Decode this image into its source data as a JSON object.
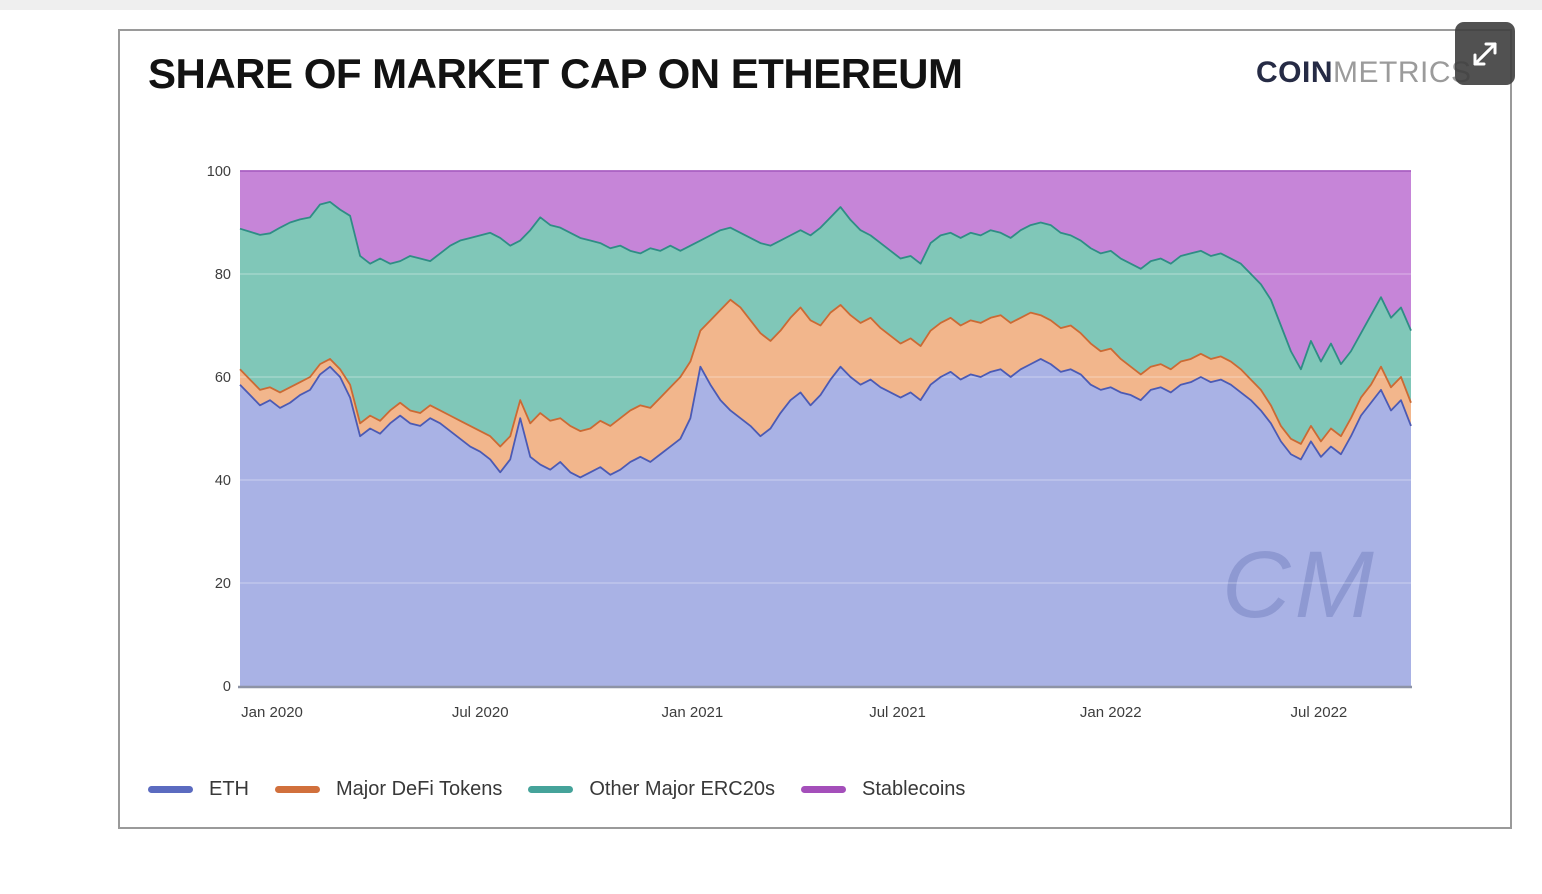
{
  "page": {
    "title": "SHARE OF MARKET CAP ON ETHEREUM"
  },
  "brand": {
    "bold": "COIN",
    "light": "METRICS"
  },
  "controls": {
    "expand_button": "expand-fullscreen"
  },
  "watermark": "CM",
  "chart_data": {
    "type": "area",
    "stacked": true,
    "note": "100% stacked area chart; 'cum' arrays are cumulative stacked share (%) sampled ~weekly from Dec 2019 to Sep 2022",
    "title": "SHARE OF MARKET CAP ON ETHEREUM",
    "xlabel": "",
    "ylabel": "",
    "ylim": [
      0,
      100
    ],
    "y_ticks": [
      0,
      20,
      40,
      60,
      80,
      100
    ],
    "n_points": 118,
    "x_ticks": [
      {
        "p": 3.2,
        "label": "Jan 2020"
      },
      {
        "p": 24.0,
        "label": "Jul 2020"
      },
      {
        "p": 45.2,
        "label": "Jan 2021"
      },
      {
        "p": 65.7,
        "label": "Jul 2021"
      },
      {
        "p": 87.0,
        "label": "Jan 2022"
      },
      {
        "p": 107.8,
        "label": "Jul 2022"
      }
    ],
    "grid": "horizontal-faint",
    "legend_position": "bottom-left",
    "series": [
      {
        "name": "ETH",
        "fill": "#a9b2e5",
        "line": "#4b5ab4",
        "legend_color": "#5b6bc0",
        "cum": [
          58.5,
          56.5,
          54.5,
          55.5,
          54,
          55,
          56.5,
          57.5,
          60.5,
          62,
          60,
          56,
          48.5,
          50,
          49,
          51,
          52.5,
          51,
          50.5,
          52,
          51,
          49.5,
          48,
          46.5,
          45.5,
          44,
          41.5,
          44,
          52,
          44.5,
          43,
          42,
          43.5,
          41.5,
          40.5,
          41.5,
          42.5,
          41,
          42,
          43.5,
          44.5,
          43.5,
          45,
          46.5,
          48,
          52,
          62,
          58.5,
          55.5,
          53.5,
          52,
          50.5,
          48.5,
          50,
          53,
          55.5,
          57,
          54.5,
          56.5,
          59.5,
          62,
          60,
          58.5,
          59.5,
          58,
          57,
          56,
          57,
          55.5,
          58.5,
          60,
          61,
          59.5,
          60.5,
          60,
          61,
          61.5,
          60,
          61.5,
          62.5,
          63.5,
          62.5,
          61,
          61.5,
          60.5,
          58.5,
          57.5,
          58,
          57,
          56.5,
          55.5,
          57.5,
          58,
          57,
          58.5,
          59,
          60,
          59,
          59.5,
          58.5,
          57,
          55.5,
          53.5,
          51,
          47.5,
          45,
          44,
          47.5,
          44.5,
          46.5,
          45,
          48.5,
          52.5,
          55,
          57.5,
          53.5,
          55.5,
          50.5
        ]
      },
      {
        "name": "Major DeFi Tokens",
        "fill": "#f2b68c",
        "line": "#cb6a34",
        "legend_color": "#d1703c",
        "cum": [
          61.5,
          59.5,
          57.5,
          58,
          57,
          58,
          59,
          60,
          62.5,
          63.5,
          61.5,
          58.5,
          51,
          52.5,
          51.5,
          53.5,
          55,
          53.5,
          53,
          54.5,
          53.5,
          52.5,
          51.5,
          50.5,
          49.5,
          48.5,
          46.5,
          48.5,
          55.5,
          51,
          53,
          51.5,
          52,
          50.5,
          49.5,
          50,
          51.5,
          50.5,
          52,
          53.5,
          54.5,
          54,
          56,
          58,
          60,
          63,
          69,
          71,
          73,
          75,
          73.5,
          71,
          68.5,
          67,
          69,
          71.5,
          73.5,
          71,
          70,
          72.5,
          74,
          72,
          70.5,
          71.5,
          69.5,
          68,
          66.5,
          67.5,
          66,
          69,
          70.5,
          71.5,
          70,
          71,
          70.5,
          71.5,
          72,
          70.5,
          71.5,
          72.5,
          72,
          71,
          69.5,
          70,
          68.5,
          66.5,
          65,
          65.5,
          63.5,
          62,
          60.5,
          62,
          62.5,
          61.5,
          63,
          63.5,
          64.5,
          63.5,
          64,
          63,
          61.5,
          59.5,
          57.5,
          54.5,
          50.5,
          48,
          47,
          50.5,
          47.5,
          50,
          48.5,
          52,
          56,
          58.5,
          62,
          58,
          60,
          55
        ]
      },
      {
        "name": "Other Major ERC20s",
        "fill": "#80c7b8",
        "line": "#2f8d85",
        "legend_color": "#45a39a",
        "cum": [
          88.8,
          88.2,
          87.6,
          87.9,
          89,
          90,
          90.6,
          91,
          93.5,
          94,
          92.5,
          91.3,
          83.5,
          82,
          83,
          82,
          82.5,
          83.5,
          83,
          82.5,
          84,
          85.5,
          86.5,
          87,
          87.5,
          88,
          87,
          85.5,
          86.5,
          88.5,
          91,
          89.5,
          89,
          88,
          87,
          86.5,
          86,
          85,
          85.5,
          84.5,
          84,
          85,
          84.5,
          85.5,
          84.5,
          85.5,
          86.5,
          87.5,
          88.5,
          89,
          88,
          87,
          86,
          85.5,
          86.5,
          87.5,
          88.5,
          87.5,
          89,
          91,
          93,
          90.5,
          88.5,
          87.5,
          86,
          84.5,
          83,
          83.5,
          82,
          86,
          87.5,
          88,
          87,
          88,
          87.5,
          88.5,
          88,
          87,
          88.5,
          89.5,
          90,
          89.5,
          88,
          87.5,
          86.5,
          85,
          84,
          84.5,
          83,
          82,
          81,
          82.5,
          83,
          82,
          83.5,
          84,
          84.5,
          83.5,
          84,
          83,
          82,
          80,
          78,
          75,
          70,
          65,
          61.5,
          67,
          63,
          66.5,
          62.5,
          65,
          68.5,
          72,
          75.5,
          71.5,
          73.5,
          69
        ]
      },
      {
        "name": "Stablecoins",
        "fill": "#c685d8",
        "line": "#a95fc2",
        "legend_color": "#a44fba",
        "cum_constant": 100
      }
    ]
  }
}
